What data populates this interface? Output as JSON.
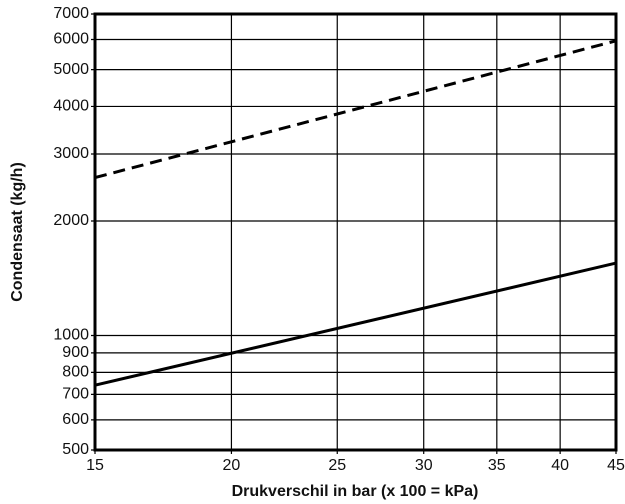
{
  "chart_data": {
    "type": "line",
    "xlabel": "Drukverschil in bar (x 100 = kPa)",
    "ylabel": "Condensaat (kg/h)",
    "x": [
      15,
      45
    ],
    "series": [
      {
        "color": "#000000",
        "dashed": false,
        "values": [
          740,
          1550
        ]
      },
      {
        "color": "#000000",
        "dashed": true,
        "values": [
          2600,
          5950
        ]
      }
    ],
    "xlim": [
      15,
      45
    ],
    "xticks": [
      15,
      20,
      25,
      30,
      35,
      40,
      45
    ],
    "ylim": [
      500,
      7000
    ],
    "yticks": [
      500,
      600,
      700,
      800,
      900,
      1000,
      2000,
      3000,
      4000,
      5000,
      6000,
      7000
    ],
    "xscale": "log",
    "yscale": "log",
    "grid": true
  }
}
